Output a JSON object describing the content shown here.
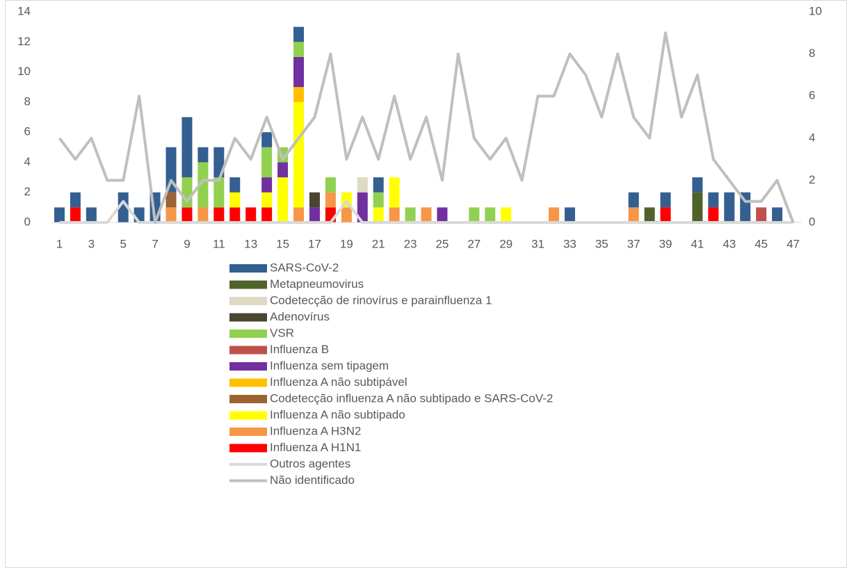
{
  "chart_data": {
    "type": "bar",
    "categories": [
      1,
      null,
      3,
      null,
      5,
      null,
      7,
      null,
      9,
      null,
      11,
      null,
      13,
      null,
      15,
      null,
      17,
      null,
      19,
      null,
      21,
      null,
      23,
      null,
      25,
      null,
      27,
      null,
      29,
      null,
      31,
      null,
      33,
      null,
      35,
      null,
      37,
      null,
      39,
      null,
      41,
      null,
      43,
      null,
      45,
      null,
      47
    ],
    "ylim": [
      0,
      14
    ],
    "yticks": [
      0,
      2,
      4,
      6,
      8,
      10,
      12,
      14
    ],
    "y2lim": [
      0,
      10
    ],
    "y2ticks": [
      0,
      2,
      4,
      6,
      8,
      10
    ],
    "legend": "bottom",
    "series": [
      {
        "name": "Influenza A H1N1",
        "color": "#ff0000",
        "values": [
          0,
          1,
          0,
          0,
          0,
          0,
          0,
          0,
          1,
          0,
          1,
          1,
          1,
          1,
          0,
          0,
          0,
          1,
          0,
          0,
          0,
          0,
          0,
          0,
          0,
          0,
          0,
          0,
          0,
          0,
          0,
          0,
          0,
          0,
          0,
          0,
          0,
          0,
          1,
          0,
          0,
          1,
          0,
          0,
          0,
          0,
          0
        ]
      },
      {
        "name": "Influenza A H3N2",
        "color": "#f79646",
        "values": [
          0,
          0,
          0,
          0,
          0,
          0,
          0,
          1,
          0,
          1,
          0,
          0,
          0,
          0,
          0,
          1,
          0,
          1,
          1,
          0,
          0,
          1,
          0,
          1,
          0,
          0,
          0,
          0,
          0,
          0,
          0,
          1,
          0,
          0,
          0,
          0,
          1,
          0,
          0,
          0,
          0,
          0,
          0,
          0,
          0,
          0,
          0
        ]
      },
      {
        "name": "Influenza A não subtipado",
        "color": "#ffff00",
        "values": [
          0,
          0,
          0,
          0,
          0,
          0,
          0,
          0,
          0,
          0,
          0,
          1,
          0,
          1,
          3,
          7,
          0,
          0,
          1,
          0,
          1,
          2,
          0,
          0,
          0,
          0,
          0,
          0,
          1,
          0,
          0,
          0,
          0,
          0,
          0,
          0,
          0,
          0,
          0,
          0,
          0,
          0,
          0,
          0,
          0,
          0,
          0
        ]
      },
      {
        "name": "Codetecção influenza A não subtipado e SARS-CoV-2",
        "color": "#9c6232",
        "values": [
          0,
          0,
          0,
          0,
          0,
          0,
          0,
          1,
          0,
          0,
          0,
          0,
          0,
          0,
          0,
          0,
          0,
          0,
          0,
          0,
          0,
          0,
          0,
          0,
          0,
          0,
          0,
          0,
          0,
          0,
          0,
          0,
          0,
          0,
          0,
          0,
          0,
          0,
          0,
          0,
          0,
          0,
          0,
          0,
          0,
          0,
          0
        ]
      },
      {
        "name": "Influenza A não subtipável",
        "color": "#ffc000",
        "values": [
          0,
          0,
          0,
          0,
          0,
          0,
          0,
          0,
          0,
          0,
          0,
          0,
          0,
          0,
          0,
          1,
          0,
          0,
          0,
          0,
          0,
          0,
          0,
          0,
          0,
          0,
          0,
          0,
          0,
          0,
          0,
          0,
          0,
          0,
          0,
          0,
          0,
          0,
          0,
          0,
          0,
          0,
          0,
          0,
          0,
          0,
          0
        ]
      },
      {
        "name": "Influenza sem tipagem",
        "color": "#7030a0",
        "values": [
          0,
          0,
          0,
          0,
          0,
          0,
          0,
          0,
          0,
          0,
          0,
          0,
          0,
          1,
          1,
          2,
          1,
          0,
          0,
          2,
          0,
          0,
          0,
          0,
          1,
          0,
          0,
          0,
          0,
          0,
          0,
          0,
          0,
          0,
          0,
          0,
          0,
          0,
          0,
          0,
          0,
          0,
          0,
          0,
          0,
          0,
          0
        ]
      },
      {
        "name": "Influenza B",
        "color": "#c0504d",
        "values": [
          0,
          0,
          0,
          0,
          0,
          0,
          0,
          0,
          0,
          0,
          0,
          0,
          0,
          0,
          0,
          0,
          0,
          0,
          0,
          0,
          0,
          0,
          0,
          0,
          0,
          0,
          0,
          0,
          0,
          0,
          0,
          0,
          0,
          0,
          0,
          0,
          0,
          0,
          0,
          0,
          0,
          0,
          0,
          0,
          1,
          0,
          0
        ]
      },
      {
        "name": "VSR",
        "color": "#92d050",
        "values": [
          0,
          0,
          0,
          0,
          0,
          0,
          0,
          0,
          2,
          3,
          2,
          0,
          0,
          2,
          1,
          1,
          0,
          1,
          0,
          0,
          1,
          0,
          1,
          0,
          0,
          0,
          1,
          1,
          0,
          0,
          0,
          0,
          0,
          0,
          0,
          0,
          0,
          0,
          0,
          0,
          0,
          0,
          0,
          0,
          0,
          0,
          0
        ]
      },
      {
        "name": "Adenovírus",
        "color": "#4a4530",
        "values": [
          0,
          0,
          0,
          0,
          0,
          0,
          0,
          0,
          0,
          0,
          0,
          0,
          0,
          0,
          0,
          0,
          1,
          0,
          0,
          0,
          0,
          0,
          0,
          0,
          0,
          0,
          0,
          0,
          0,
          0,
          0,
          0,
          0,
          0,
          0,
          0,
          0,
          0,
          0,
          0,
          0,
          0,
          0,
          0,
          0,
          0,
          0
        ]
      },
      {
        "name": "Codetecção de rinovírus e parainfluenza 1",
        "color": "#ddd9c3",
        "values": [
          0,
          0,
          0,
          0,
          0,
          0,
          0,
          0,
          0,
          0,
          0,
          0,
          0,
          0,
          0,
          0,
          0,
          0,
          0,
          1,
          0,
          0,
          0,
          0,
          0,
          0,
          0,
          0,
          0,
          0,
          0,
          0,
          0,
          0,
          0,
          0,
          0,
          0,
          0,
          0,
          0,
          0,
          0,
          0,
          0,
          0,
          0
        ]
      },
      {
        "name": "Metapneumovirus",
        "color": "#4f6228",
        "values": [
          0,
          0,
          0,
          0,
          0,
          0,
          0,
          0,
          0,
          0,
          0,
          0,
          0,
          0,
          0,
          0,
          0,
          0,
          0,
          0,
          0,
          0,
          0,
          0,
          0,
          0,
          0,
          0,
          0,
          0,
          0,
          0,
          0,
          0,
          0,
          0,
          0,
          1,
          0,
          0,
          2,
          0,
          0,
          0,
          0,
          0,
          0
        ]
      },
      {
        "name": "SARS-CoV-2",
        "color": "#335f91",
        "values": [
          1,
          1,
          1,
          0,
          2,
          1,
          2,
          3,
          4,
          1,
          2,
          1,
          0,
          1,
          0,
          1,
          0,
          0,
          0,
          0,
          1,
          0,
          0,
          0,
          0,
          0,
          0,
          0,
          0,
          0,
          0,
          0,
          1,
          0,
          0,
          0,
          1,
          0,
          1,
          0,
          1,
          1,
          2,
          2,
          0,
          1,
          0
        ]
      },
      {
        "name": "Outros agentes",
        "color": "#d9d9d9",
        "axis": "y2",
        "type": "line",
        "values": [
          0,
          0,
          0,
          0,
          1,
          0,
          0,
          0,
          0,
          0,
          0,
          0,
          0,
          0,
          0,
          0,
          0,
          0,
          1,
          0,
          0,
          0,
          0,
          0,
          0,
          0,
          0,
          0,
          0,
          0,
          0,
          0,
          0,
          0,
          0,
          0,
          0,
          0,
          0,
          0,
          0,
          0,
          0,
          0,
          0,
          0,
          0
        ]
      },
      {
        "name": "Não identificado",
        "color": "#bfbfbf",
        "axis": "y2",
        "type": "line",
        "values": [
          4,
          3,
          4,
          2,
          2,
          6,
          0,
          2,
          1,
          2,
          2,
          4,
          3,
          5,
          3,
          4,
          5,
          8,
          3,
          5,
          3,
          6,
          3,
          5,
          2,
          8,
          4,
          3,
          4,
          2,
          6,
          6,
          8,
          7,
          5,
          8,
          5,
          4,
          9,
          5,
          7,
          3,
          2,
          1,
          1,
          2,
          0
        ]
      }
    ]
  }
}
